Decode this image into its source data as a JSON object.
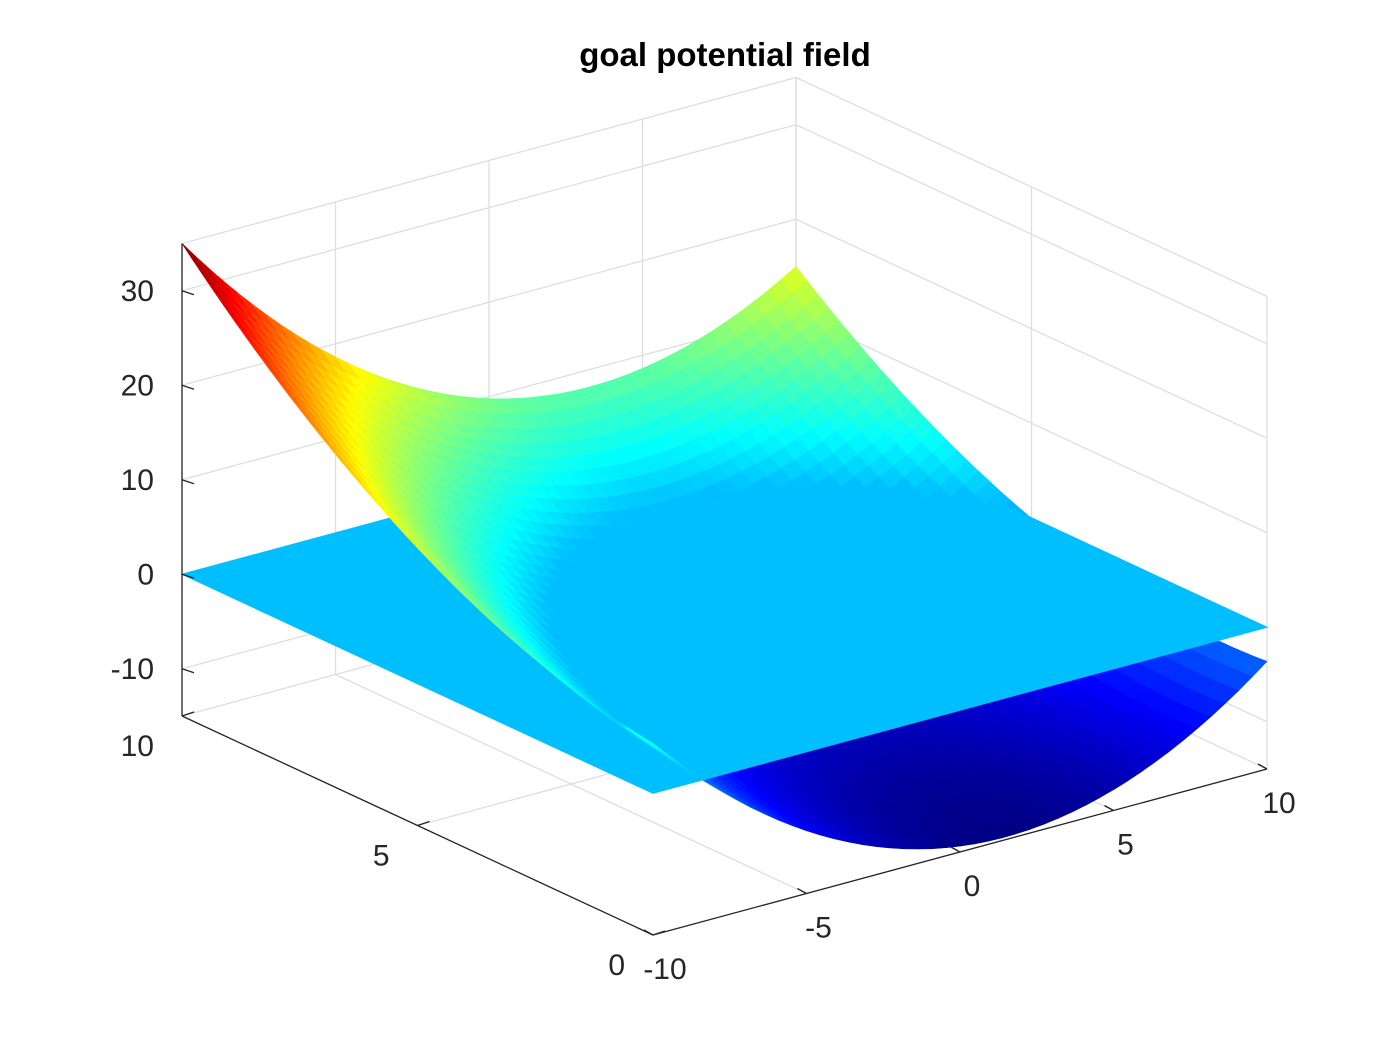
{
  "chart_data": {
    "type": "surface",
    "title": "goal potential field",
    "xlabel": "",
    "ylabel": "",
    "zlabel": "",
    "grid": true,
    "colormap": "jet",
    "xlim": [
      -10,
      10
    ],
    "ylim": [
      0,
      10
    ],
    "zlim": [
      -15,
      35
    ],
    "x_ticks": [
      -10,
      -5,
      0,
      5,
      10
    ],
    "x_tick_labels": [
      "-10",
      "-5",
      "0",
      "5",
      "10"
    ],
    "y_ticks": [
      0,
      5,
      10
    ],
    "y_tick_labels": [
      "0",
      "5",
      "10"
    ],
    "z_ticks": [
      -10,
      0,
      10,
      20,
      30
    ],
    "z_tick_labels": [
      "-10",
      "0",
      "10",
      "20",
      "30"
    ],
    "series": [
      {
        "kind": "quadratic-surface",
        "goal_x": 2,
        "goal_y": 0,
        "min_z": -15,
        "samples": [
          {
            "x": 2,
            "y": 0,
            "z": -15
          },
          {
            "x": -10,
            "y": 10,
            "z": 35
          },
          {
            "x": 10,
            "y": 10,
            "z": 15
          },
          {
            "x": -10,
            "y": 0,
            "z": 5
          },
          {
            "x": 10,
            "y": 0,
            "z": -3
          }
        ]
      },
      {
        "kind": "plane",
        "z": 0,
        "color": "#00bfff"
      }
    ]
  }
}
